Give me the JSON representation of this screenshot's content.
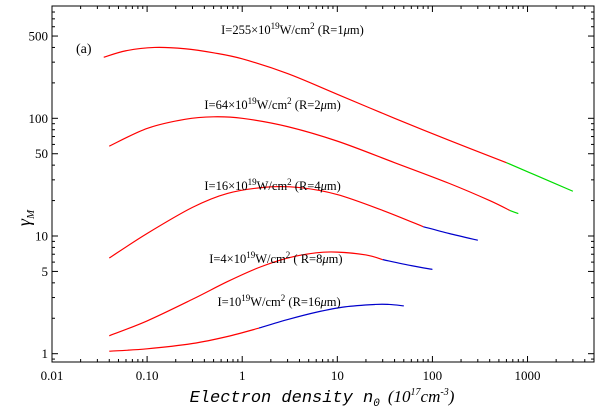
{
  "chart_data": {
    "type": "line",
    "panel_label": "(a)",
    "xlabel": "Electron density n",
    "xlabel_sub": "0",
    "xlabel_units_prefix": "(10",
    "xlabel_units_exp": "17",
    "xlabel_units_mid": "cm",
    "xlabel_units_exp2": "-3",
    "xlabel_units_suffix": ")",
    "ylabel": "γ",
    "ylabel_sub": "M",
    "x_scale": "log",
    "y_scale": "log",
    "xlim": [
      0.01,
      5000
    ],
    "ylim": [
      0.85,
      900
    ],
    "x_ticks": [
      {
        "value": 0.01,
        "label": "0.01"
      },
      {
        "value": 0.1,
        "label": "0.10"
      },
      {
        "value": 1,
        "label": "1"
      },
      {
        "value": 10,
        "label": "10"
      },
      {
        "value": 100,
        "label": "100"
      },
      {
        "value": 1000,
        "label": "1000"
      }
    ],
    "y_ticks": [
      {
        "value": 1,
        "label": "1"
      },
      {
        "value": 5,
        "label": "5"
      },
      {
        "value": 10,
        "label": "10"
      },
      {
        "value": 50,
        "label": "50"
      },
      {
        "value": 100,
        "label": "100"
      },
      {
        "value": 500,
        "label": "500"
      }
    ],
    "series": [
      {
        "name": "I=10^19 W/cm2 (R=16μm)",
        "label_parts": [
          "I=10",
          "19",
          "W/cm",
          "2",
          " (R=16",
          "μ",
          "m)"
        ],
        "label_anchor": [
          0.55,
          2.55
        ],
        "segments": [
          {
            "color": "#ff0000",
            "points": [
              [
                0.04,
                1.05
              ],
              [
                0.1,
                1.1
              ],
              [
                0.3,
                1.22
              ],
              [
                0.7,
                1.4
              ],
              [
                1.5,
                1.65
              ]
            ]
          },
          {
            "color": "#0000cc",
            "points": [
              [
                1.5,
                1.65
              ],
              [
                3,
                1.95
              ],
              [
                6,
                2.25
              ],
              [
                12,
                2.5
              ],
              [
                25,
                2.62
              ],
              [
                35,
                2.62
              ],
              [
                50,
                2.55
              ]
            ]
          }
        ]
      },
      {
        "name": "I=4x10^19 W/cm2 (R=8μm)",
        "label_parts": [
          "I=4×10",
          "19",
          "W/cm",
          "2",
          " ( R=8",
          "μ",
          "m)"
        ],
        "label_anchor": [
          0.45,
          5.9
        ],
        "segments": [
          {
            "color": "#ff0000",
            "points": [
              [
                0.04,
                1.42
              ],
              [
                0.1,
                1.9
              ],
              [
                0.3,
                2.9
              ],
              [
                0.7,
                4.1
              ],
              [
                1.5,
                5.4
              ],
              [
                3,
                6.5
              ],
              [
                6,
                7.2
              ],
              [
                10,
                7.3
              ],
              [
                20,
                6.9
              ],
              [
                30,
                6.3
              ]
            ]
          },
          {
            "color": "#0000cc",
            "points": [
              [
                30,
                6.3
              ],
              [
                60,
                5.6
              ],
              [
                100,
                5.2
              ]
            ]
          }
        ]
      },
      {
        "name": "I=16x10^19 W/cm2 (R=4μm)",
        "label_parts": [
          "I=16×10",
          "19",
          "W/cm",
          "2",
          " (R=4",
          "μ",
          "m)"
        ],
        "label_anchor": [
          0.4,
          24.5
        ],
        "segments": [
          {
            "color": "#ff0000",
            "points": [
              [
                0.04,
                6.5
              ],
              [
                0.1,
                10.5
              ],
              [
                0.3,
                17.5
              ],
              [
                0.7,
                23
              ],
              [
                1.8,
                26
              ],
              [
                4,
                25.8
              ],
              [
                10,
                22.5
              ],
              [
                30,
                16.5
              ],
              [
                80,
                12
              ]
            ]
          },
          {
            "color": "#0000cc",
            "points": [
              [
                80,
                12
              ],
              [
                150,
                10.5
              ],
              [
                300,
                9.2
              ]
            ]
          }
        ]
      },
      {
        "name": "I=64x10^19 W/cm2 (R=2μm)",
        "label_parts": [
          "I=64×10",
          "19",
          "W/cm",
          "2",
          " (R=2",
          "μ",
          "m)"
        ],
        "label_anchor": [
          0.4,
          120
        ],
        "segments": [
          {
            "color": "#ff0000",
            "points": [
              [
                0.04,
                58
              ],
              [
                0.1,
                82
              ],
              [
                0.25,
                98
              ],
              [
                0.5,
                103
              ],
              [
                1,
                100
              ],
              [
                3,
                85
              ],
              [
                10,
                64
              ],
              [
                40,
                42
              ],
              [
                150,
                28
              ],
              [
                400,
                20
              ],
              [
                650,
                16.5
              ]
            ]
          },
          {
            "color": "#00dd00",
            "points": [
              [
                650,
                16.5
              ],
              [
                800,
                15.5
              ]
            ]
          }
        ]
      },
      {
        "name": "I=255x10^19 W/cm2 (R=1μm)",
        "label_parts": [
          "I=255×10",
          "19",
          "W/cm",
          "2",
          " (R=1",
          "μ",
          "m)"
        ],
        "label_anchor": [
          0.6,
          520
        ],
        "segments": [
          {
            "color": "#ff0000",
            "points": [
              [
                0.035,
                330
              ],
              [
                0.06,
                375
              ],
              [
                0.12,
                400
              ],
              [
                0.25,
                390
              ],
              [
                0.5,
                360
              ],
              [
                1,
                320
              ],
              [
                3,
                240
              ],
              [
                10,
                160
              ],
              [
                40,
                100
              ],
              [
                150,
                65
              ],
              [
                600,
                42
              ]
            ]
          },
          {
            "color": "#00dd00",
            "points": [
              [
                600,
                42
              ],
              [
                1200,
                33
              ],
              [
                3000,
                24
              ]
            ]
          }
        ]
      }
    ]
  }
}
